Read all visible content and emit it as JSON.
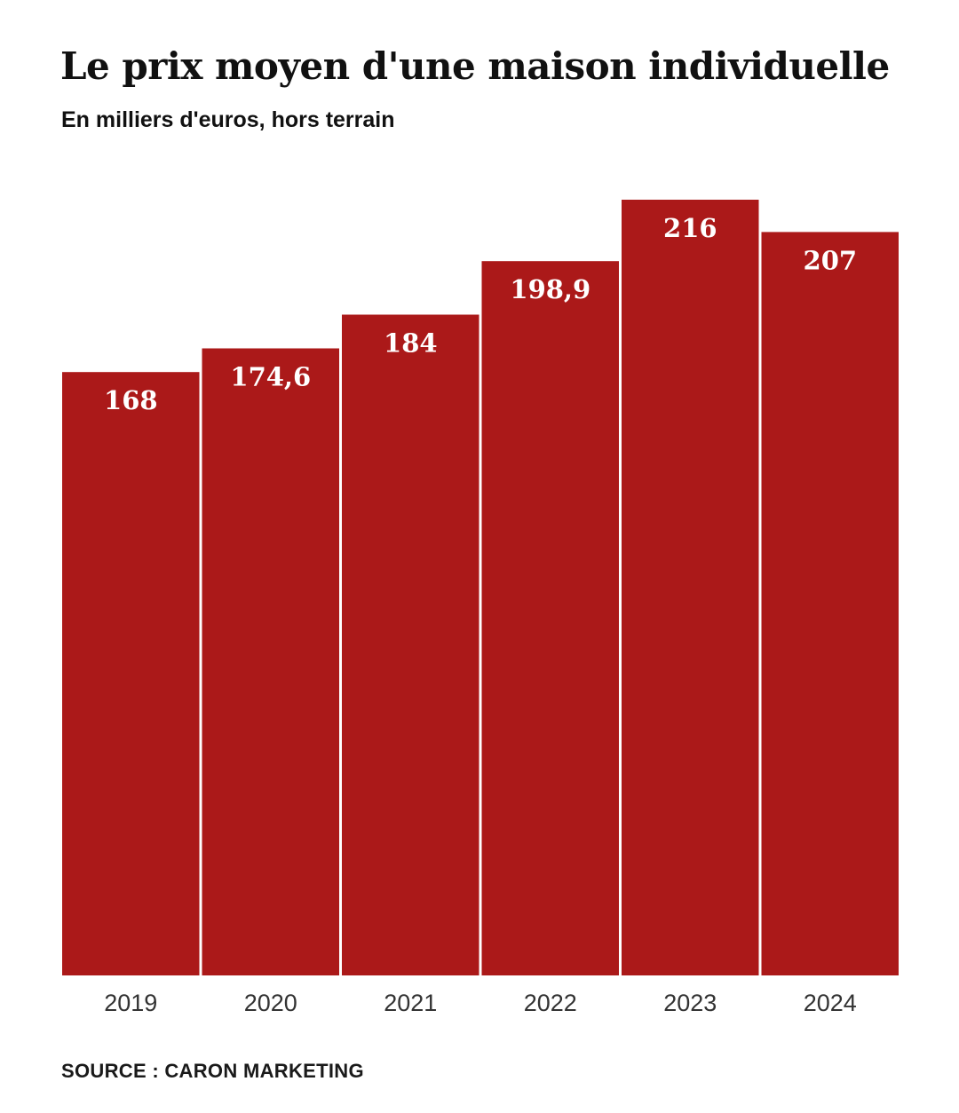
{
  "header": {
    "title": "Le prix moyen d'une maison individuelle",
    "subtitle": "En milliers d'euros, hors terrain"
  },
  "footer": {
    "source": "SOURCE : CARON MARKETING"
  },
  "colors": {
    "bar": "#ab1919",
    "value_text": "#ffffff",
    "tick_text": "#333333"
  },
  "chart_data": {
    "type": "bar",
    "title": "Le prix moyen d'une maison individuelle",
    "subtitle": "En milliers d'euros, hors terrain",
    "categories": [
      "2019",
      "2020",
      "2021",
      "2022",
      "2023",
      "2024"
    ],
    "values": [
      168,
      174.6,
      184,
      198.9,
      216,
      207
    ],
    "value_labels": [
      "168",
      "174,6",
      "184",
      "198,9",
      "216",
      "207"
    ],
    "xlabel": "",
    "ylabel": "",
    "ylim": [
      0,
      216
    ],
    "grid": false,
    "legend": "none",
    "data_labels": "inside-top"
  }
}
